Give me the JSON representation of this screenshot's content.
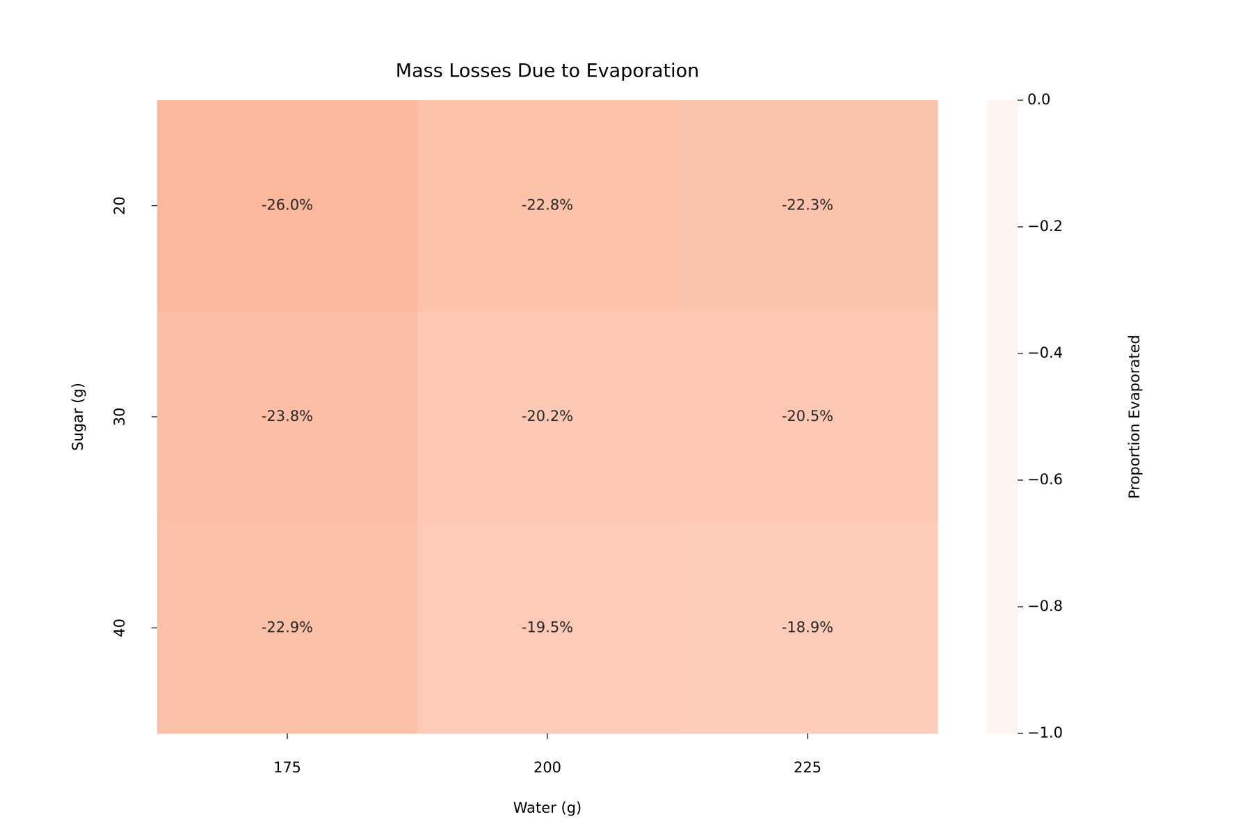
{
  "chart_data": {
    "type": "heatmap",
    "title": "Mass Losses Due to Evaporation",
    "x_label": "Water (g)",
    "y_label": "Sugar (g)",
    "colorbar_label": "Proportion Evaporated",
    "categories": [
      "175",
      "200",
      "225"
    ],
    "y_categories": [
      "20",
      "30",
      "40"
    ],
    "values": [
      [
        -0.26,
        -0.228,
        -0.223
      ],
      [
        -0.238,
        -0.202,
        -0.205
      ],
      [
        -0.229,
        -0.195,
        -0.189
      ]
    ],
    "value_labels": [
      [
        "-26.0%",
        "-22.8%",
        "-22.3%"
      ],
      [
        "-23.8%",
        "-20.2%",
        "-20.5%"
      ],
      [
        "-22.9%",
        "-19.5%",
        "-18.9%"
      ]
    ],
    "clim": [
      -1,
      0
    ],
    "cticks": [
      {
        "value": 0,
        "label": "0.0"
      },
      {
        "value": -0.2,
        "label": "−0.2"
      },
      {
        "value": -0.4,
        "label": "−0.4"
      },
      {
        "value": -0.6,
        "label": "−0.6"
      },
      {
        "value": -0.8,
        "label": "−0.8"
      },
      {
        "value": -1,
        "label": "−1.0"
      }
    ],
    "colormap": [
      "#fff5f0",
      "#fee0d2",
      "#fcbba1",
      "#fc9272",
      "#fb6a4a",
      "#ef3b2c",
      "#cb181d",
      "#a50f15",
      "#67000d"
    ]
  }
}
